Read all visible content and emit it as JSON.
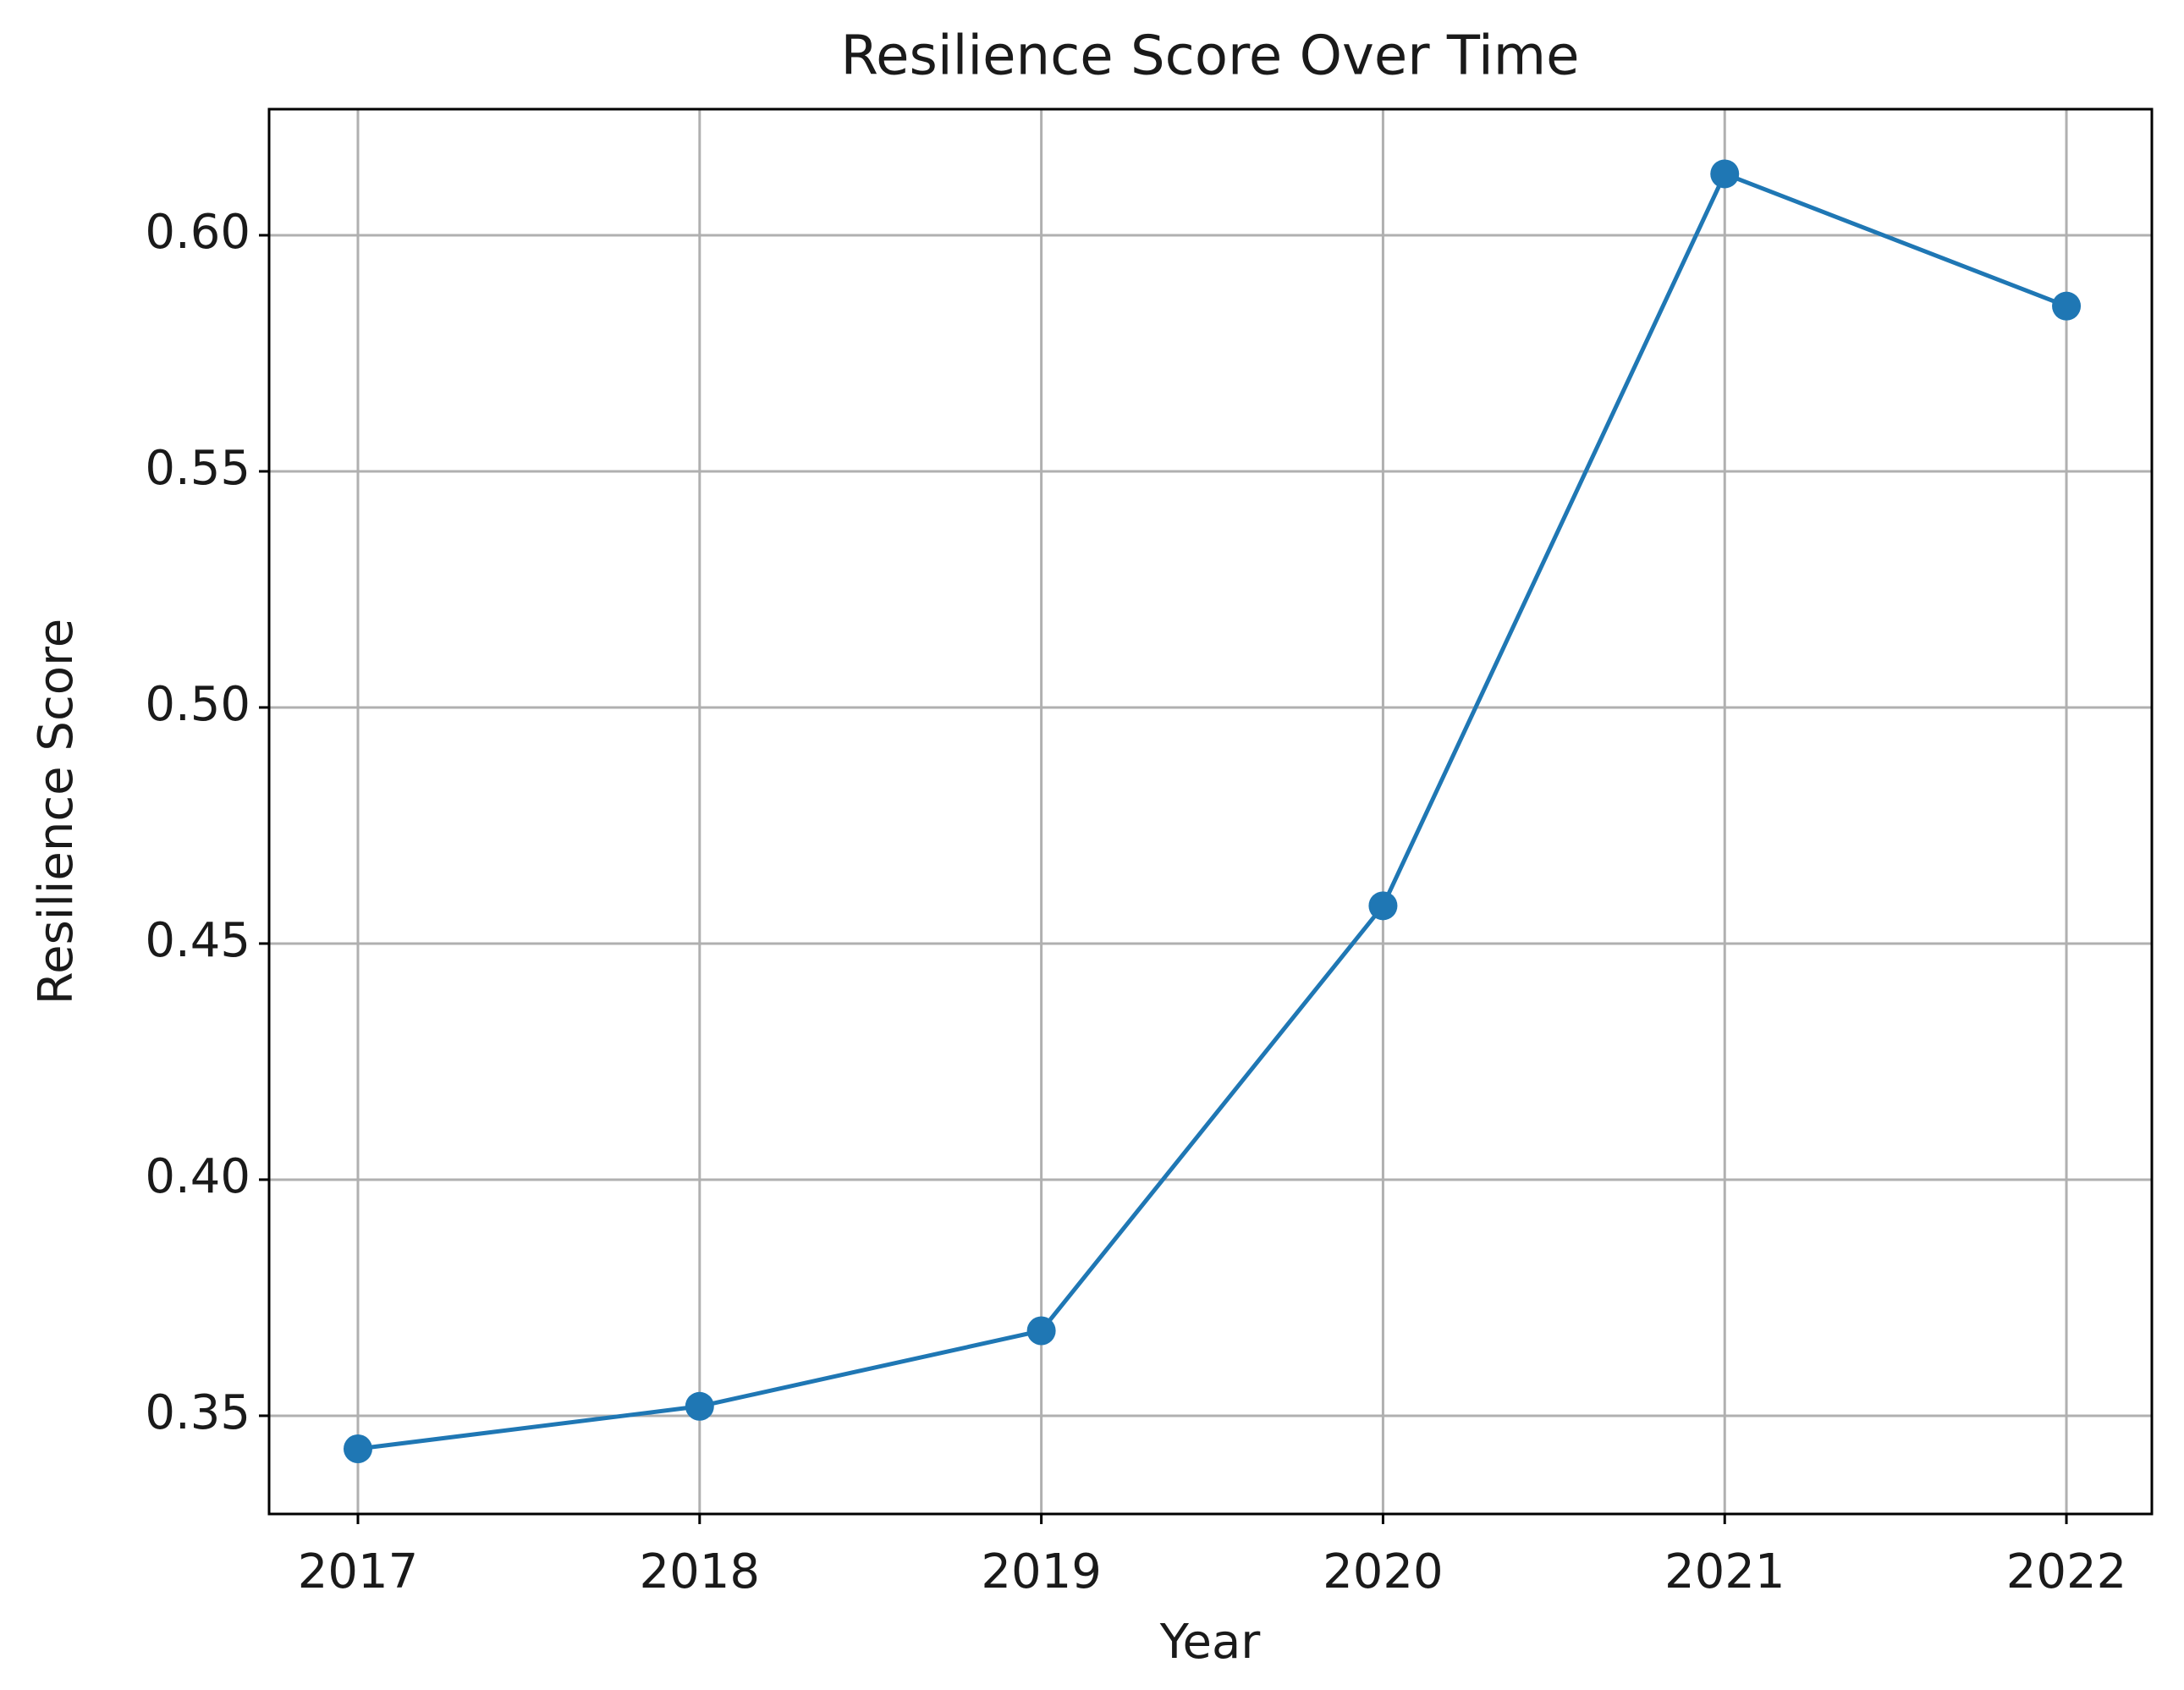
{
  "chart_data": {
    "type": "line",
    "title": "Resilience Score Over Time",
    "x_label": "Year",
    "y_label": "Resilience Score",
    "x": [
      2017,
      2018,
      2019,
      2020,
      2021,
      2022
    ],
    "series": [
      {
        "name": "Resilience Score",
        "color": "#1f77b4",
        "values": [
          0.343,
          0.352,
          0.368,
          0.458,
          0.613,
          0.585
        ]
      }
    ],
    "xlim": [
      2016.74,
      2022.25
    ],
    "xticks": [
      2017,
      2018,
      2019,
      2020,
      2021,
      2022
    ],
    "ylim": [
      0.3292,
      0.6267
    ],
    "yticks": [
      {
        "value": 0.35,
        "label": "0.35"
      },
      {
        "value": 0.4,
        "label": "0.40"
      },
      {
        "value": 0.45,
        "label": "0.45"
      },
      {
        "value": 0.5,
        "label": "0.50"
      },
      {
        "value": 0.55,
        "label": "0.55"
      },
      {
        "value": 0.6,
        "label": "0.60"
      }
    ],
    "grid": true
  }
}
